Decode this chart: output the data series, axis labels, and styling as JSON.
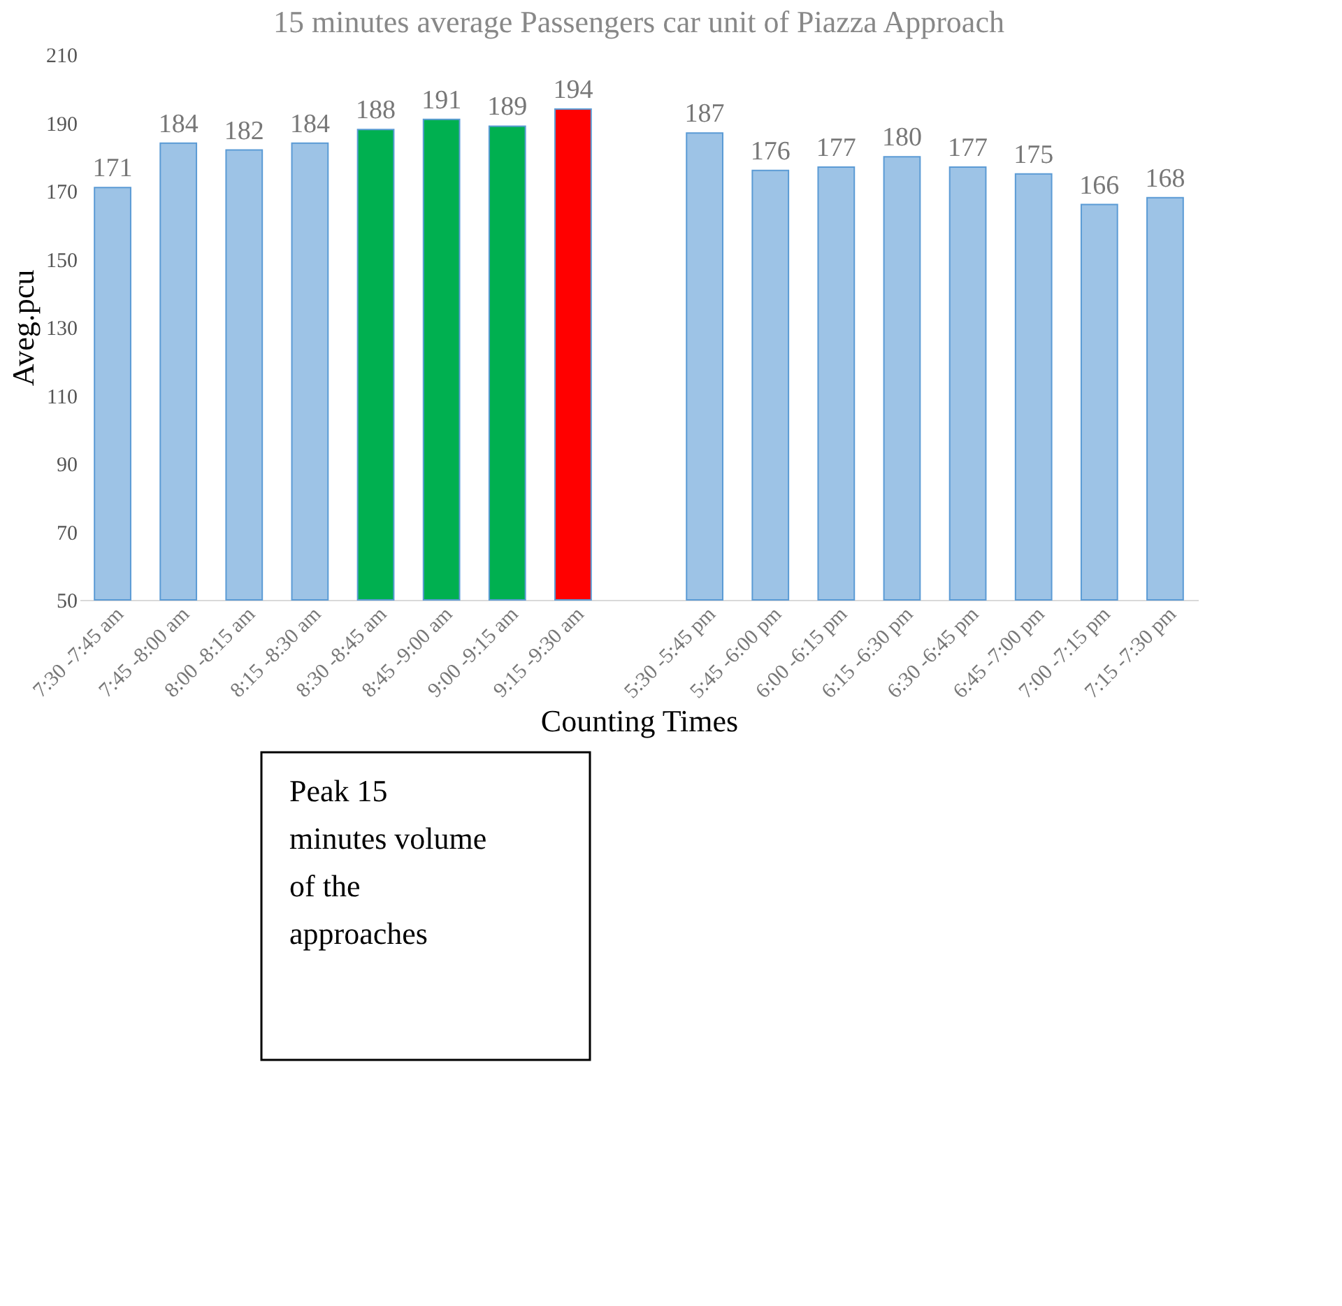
{
  "chart_data": {
    "type": "bar",
    "title": "15 minutes average Passengers car unit of Piazza Approach",
    "xlabel": "Counting Times",
    "ylabel": "Aveg.pcu",
    "categories": [
      "7:30 -7:45 am",
      "7:45 -8:00 am",
      "8:00 -8:15 am",
      "8:15 -8:30 am",
      "8:30 -8:45 am",
      "8:45 -9:00 am",
      "9:00 -9:15 am",
      "9:15 -9:30 am",
      null,
      "5:30 -5:45 pm",
      "5:45 -6:00 pm",
      "6:00 -6:15 pm",
      "6:15 -6:30 pm",
      "6:30 -6:45 pm",
      "6:45 -7:00 pm",
      "7:00 -7:15 pm",
      "7:15 -7:30 pm"
    ],
    "values": [
      171,
      184,
      182,
      184,
      188,
      191,
      189,
      194,
      null,
      187,
      176,
      177,
      180,
      177,
      175,
      166,
      168
    ],
    "colors": [
      "#9dc3e6",
      "#9dc3e6",
      "#9dc3e6",
      "#9dc3e6",
      "#00b050",
      "#00b050",
      "#00b050",
      "#ff0000",
      "#9dc3e6",
      "#9dc3e6",
      "#9dc3e6",
      "#9dc3e6",
      "#9dc3e6",
      "#9dc3e6",
      "#9dc3e6",
      "#9dc3e6",
      "#9dc3e6"
    ],
    "ylim": [
      50,
      210
    ],
    "yticks": [
      50,
      70,
      90,
      110,
      130,
      150,
      170,
      190,
      210
    ],
    "grid": false,
    "data_labels": true,
    "annotations": [
      "Peak 15 minutes volume of the approaches"
    ]
  }
}
